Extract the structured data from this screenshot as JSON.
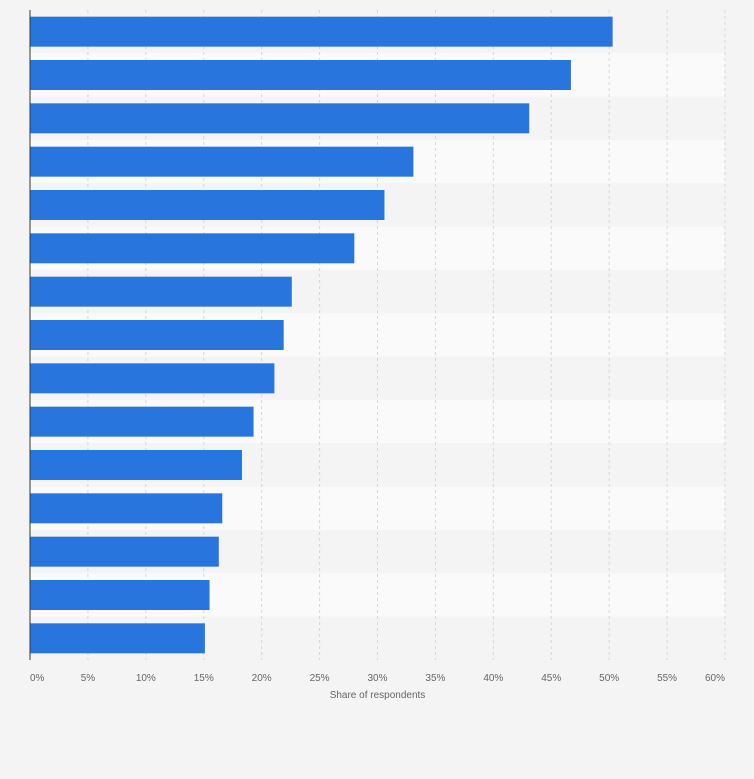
{
  "chart_data": {
    "type": "bar",
    "orientation": "horizontal",
    "title": "",
    "xlabel": "Share of respondents",
    "ylabel": "",
    "categories": [
      "",
      "",
      "",
      "",
      "",
      "",
      "",
      "",
      "",
      "",
      "",
      "",
      "",
      "",
      ""
    ],
    "values": [
      50.3,
      46.7,
      43.1,
      33.1,
      30.6,
      28.0,
      22.6,
      21.9,
      21.1,
      19.3,
      18.3,
      16.6,
      16.3,
      15.5,
      15.1
    ],
    "xlim": [
      0,
      60
    ],
    "xticks": [
      "0%",
      "5%",
      "10%",
      "15%",
      "20%",
      "25%",
      "30%",
      "35%",
      "40%",
      "45%",
      "50%",
      "55%",
      "60%"
    ],
    "grid": true,
    "legend": "none",
    "colors": {
      "bar": "#2876dd",
      "band_even": "#f4f4f4",
      "band_odd": "#fafafa",
      "grid": "#d6d6d6",
      "axis": "#333333"
    }
  }
}
